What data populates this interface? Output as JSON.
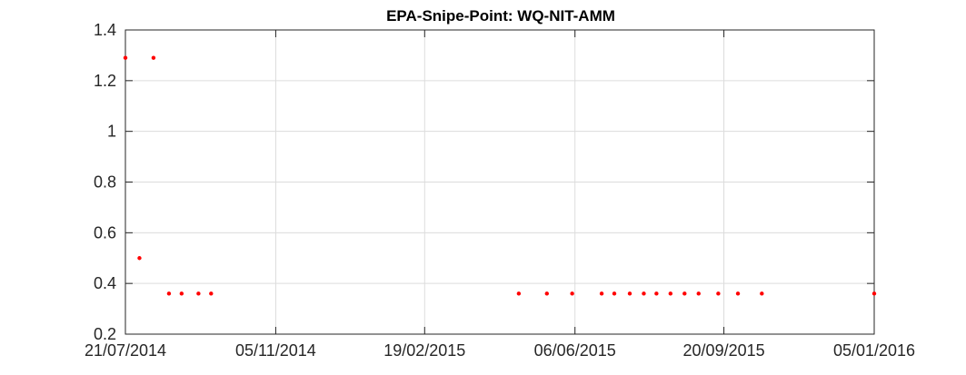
{
  "chart_data": {
    "type": "scatter",
    "title": "EPA-Snipe-Point: WQ-NIT-AMM",
    "xlabel": "",
    "ylabel": "",
    "xlim": [
      "2014-07-21",
      "2016-01-05"
    ],
    "ylim": [
      0.2,
      1.4
    ],
    "x_ticks": [
      "2014-07-21",
      "2014-11-05",
      "2015-02-19",
      "2015-06-06",
      "2015-09-20",
      "2016-01-05"
    ],
    "x_tick_labels": [
      "21/07/2014",
      "05/11/2014",
      "19/02/2015",
      "06/06/2015",
      "20/09/2015",
      "05/01/2016"
    ],
    "y_ticks": [
      0.2,
      0.4,
      0.6,
      0.8,
      1.0,
      1.2,
      1.4
    ],
    "y_tick_labels": [
      "0.2",
      "0.4",
      "0.6",
      "0.8",
      "1",
      "1.2",
      "1.4"
    ],
    "grid": true,
    "marker_color": "#ff0000",
    "series": [
      {
        "x": [
          "2014-07-21",
          "2014-07-31",
          "2014-08-10",
          "2014-08-21",
          "2014-08-30",
          "2014-09-11",
          "2014-09-20",
          "2015-04-27",
          "2015-05-17",
          "2015-06-04",
          "2015-06-25",
          "2015-07-04",
          "2015-07-15",
          "2015-07-25",
          "2015-08-03",
          "2015-08-13",
          "2015-08-23",
          "2015-09-02",
          "2015-09-16",
          "2015-09-30",
          "2015-10-17",
          "2016-01-05"
        ],
        "y": [
          1.29,
          0.5,
          1.29,
          0.36,
          0.36,
          0.36,
          0.36,
          0.36,
          0.36,
          0.36,
          0.36,
          0.36,
          0.36,
          0.36,
          0.36,
          0.36,
          0.36,
          0.36,
          0.36,
          0.36,
          0.36,
          0.36
        ]
      }
    ]
  }
}
